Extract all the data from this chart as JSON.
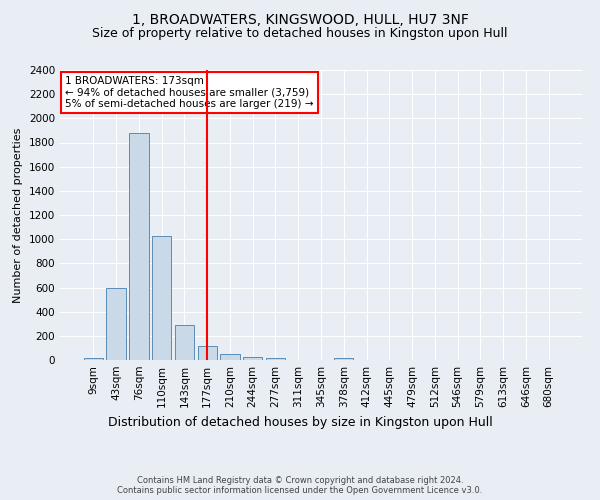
{
  "title": "1, BROADWATERS, KINGSWOOD, HULL, HU7 3NF",
  "subtitle": "Size of property relative to detached houses in Kingston upon Hull",
  "xlabel_bottom": "Distribution of detached houses by size in Kingston upon Hull",
  "ylabel": "Number of detached properties",
  "footnote": "Contains HM Land Registry data © Crown copyright and database right 2024.\nContains public sector information licensed under the Open Government Licence v3.0.",
  "bar_labels": [
    "9sqm",
    "43sqm",
    "76sqm",
    "110sqm",
    "143sqm",
    "177sqm",
    "210sqm",
    "244sqm",
    "277sqm",
    "311sqm",
    "345sqm",
    "378sqm",
    "412sqm",
    "445sqm",
    "479sqm",
    "512sqm",
    "546sqm",
    "579sqm",
    "613sqm",
    "646sqm",
    "680sqm"
  ],
  "bar_values": [
    20,
    600,
    1880,
    1030,
    290,
    115,
    50,
    25,
    20,
    0,
    0,
    20,
    0,
    0,
    0,
    0,
    0,
    0,
    0,
    0,
    0
  ],
  "bar_color": "#c9d9e8",
  "bar_edge_color": "#5b8db8",
  "red_line_index": 5,
  "annotation_text": "1 BROADWATERS: 173sqm\n← 94% of detached houses are smaller (3,759)\n5% of semi-detached houses are larger (219) →",
  "annotation_box_color": "white",
  "annotation_box_edge": "red",
  "ylim": [
    0,
    2400
  ],
  "yticks": [
    0,
    200,
    400,
    600,
    800,
    1000,
    1200,
    1400,
    1600,
    1800,
    2000,
    2200,
    2400
  ],
  "background_color": "#e8eef4",
  "grid_color": "white",
  "title_fontsize": 10,
  "subtitle_fontsize": 9,
  "ylabel_fontsize": 8,
  "tick_fontsize": 7.5,
  "annotation_fontsize": 7.5,
  "xlabel_bottom_fontsize": 9,
  "footnote_fontsize": 6
}
